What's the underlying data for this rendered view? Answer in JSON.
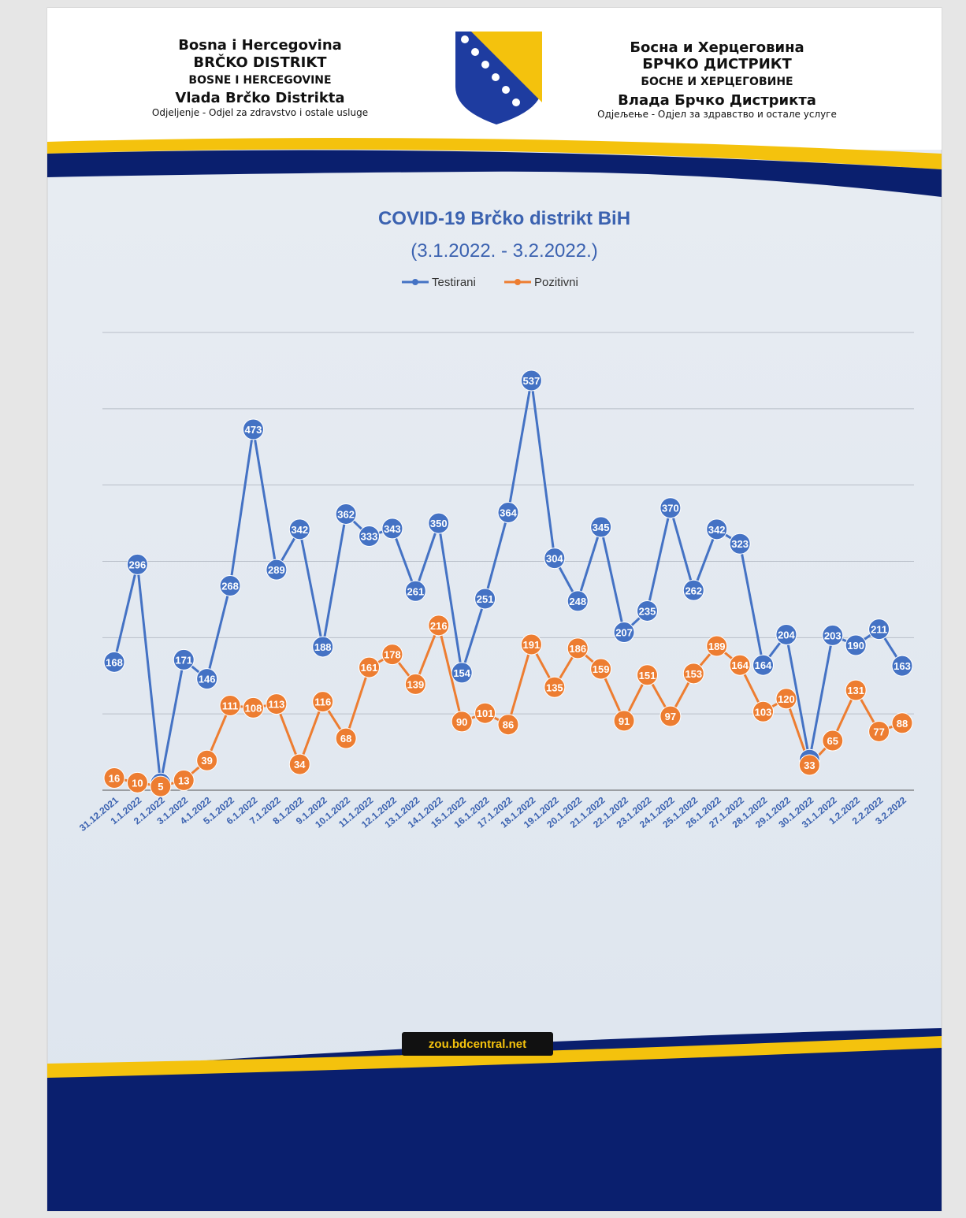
{
  "header": {
    "left": [
      "Bosna i Hercegovina",
      "BRČKO DISTRIKT",
      "BOSNE I HERCEGOVINE",
      "Vlada Brčko Distrikta",
      "Odjeljenje - Odjel za zdravstvo i ostale usluge"
    ],
    "right": [
      "Босна и Херцеговина",
      "БРЧКО ДИСТРИКТ",
      "БОСНЕ И ХЕРЦЕГОВИНЕ",
      "Влада Брчко Дистрикта",
      "Одјељење - Одјел за здравство и остале услуге"
    ]
  },
  "footer": {
    "website": "zou.bdcentral.net"
  },
  "chart_data": {
    "type": "line",
    "title": "COVID-19 Brčko distrikt BiH",
    "subtitle": "(3.1.2022. - 3.2.2022.)",
    "categories": [
      "31.12.2021",
      "1.1.2022",
      "2.1.2022",
      "3.1.2022",
      "4.1.2022",
      "5.1.2022",
      "6.1.2022",
      "7.1.2022",
      "8.1.2022",
      "9.1.2022",
      "10.1.2022",
      "11.1.2022",
      "12.1.2022",
      "13.1.2022",
      "14.1.2022",
      "15.1.2022",
      "16.1.2022",
      "17.1.2022",
      "18.1.2022",
      "19.1.2022",
      "20.1.2022",
      "21.1.2022",
      "22.1.2022",
      "23.1.2022",
      "24.1.2022",
      "25.1.2022",
      "26.1.2022",
      "27.1.2022",
      "28.1.2022",
      "29.1.2022",
      "30.1.2022",
      "31.1.2022",
      "1.2.2022",
      "2.2.2022",
      "3.2.2022"
    ],
    "series": [
      {
        "name": "Testirani",
        "color": "#4472c4",
        "values": [
          168,
          296,
          9,
          171,
          146,
          268,
          473,
          289,
          342,
          188,
          362,
          333,
          343,
          261,
          350,
          154,
          251,
          364,
          537,
          304,
          248,
          345,
          207,
          235,
          370,
          262,
          342,
          323,
          164,
          204,
          40,
          203,
          190,
          211,
          163
        ]
      },
      {
        "name": "Pozitivni",
        "color": "#ed7d31",
        "values": [
          16,
          10,
          5,
          13,
          39,
          111,
          108,
          113,
          34,
          116,
          68,
          161,
          178,
          139,
          216,
          90,
          101,
          86,
          191,
          135,
          186,
          159,
          91,
          151,
          97,
          153,
          189,
          164,
          103,
          120,
          33,
          65,
          131,
          77,
          88
        ]
      }
    ],
    "ylim": [
      0,
      600
    ],
    "yticks": [
      0,
      100,
      200,
      300,
      400,
      500,
      600
    ],
    "grid": true,
    "legend": "top"
  }
}
